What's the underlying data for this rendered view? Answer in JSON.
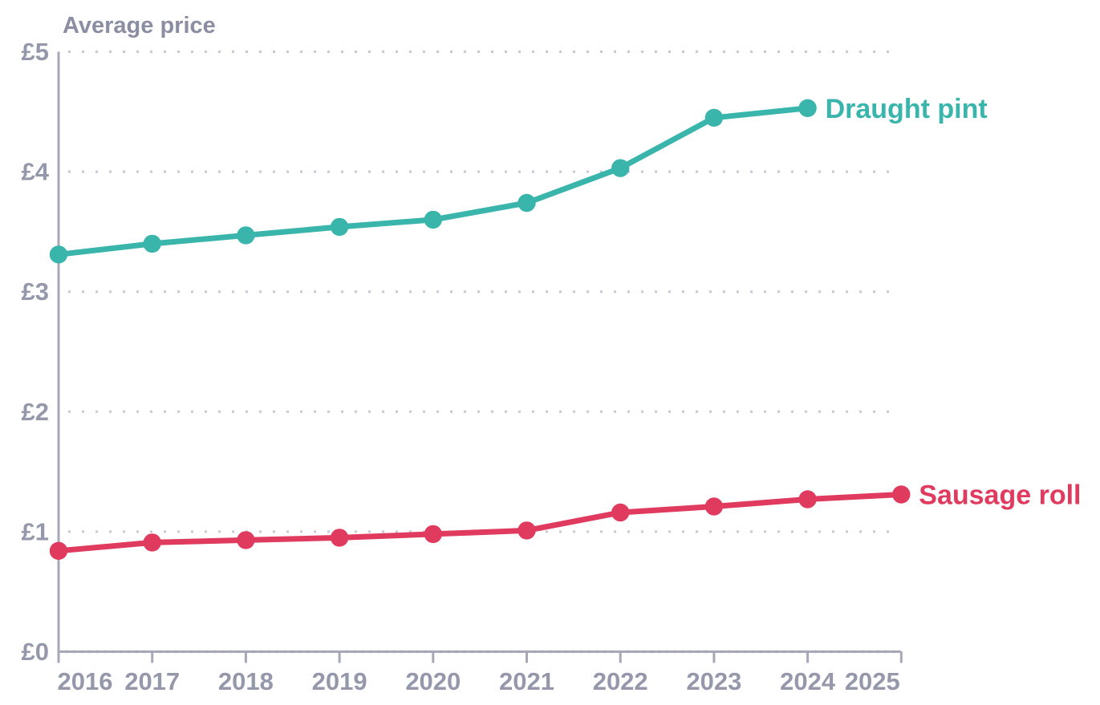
{
  "chart_data": {
    "type": "line",
    "title": "Average price",
    "currency_symbol": "£",
    "xlim": [
      2016,
      2025
    ],
    "ylim": [
      0,
      5
    ],
    "grid": "dotted-horizontal",
    "legend_position": "end-of-line-labels",
    "x_axis": {
      "major_ticks": [
        2016,
        2017,
        2018,
        2019,
        2020,
        2021,
        2022,
        2023,
        2024,
        2025
      ],
      "tick_labels": [
        "2016",
        "2017",
        "2018",
        "2019",
        "2020",
        "2021",
        "2022",
        "2023",
        "2024",
        "2025"
      ],
      "minor_tick_interval": "monthly"
    },
    "y_axis": {
      "tick_values": [
        0,
        1,
        2,
        3,
        4,
        5
      ],
      "tick_labels": [
        "£0",
        "£1",
        "£2",
        "£3",
        "£4",
        "£5"
      ]
    },
    "series": [
      {
        "name": "Draught pint",
        "color": "#3ab5ac",
        "x": [
          2016,
          2017,
          2018,
          2019,
          2020,
          2021,
          2022,
          2023,
          2024
        ],
        "values": [
          3.31,
          3.4,
          3.47,
          3.54,
          3.6,
          3.74,
          4.03,
          4.45,
          4.53
        ]
      },
      {
        "name": "Sausage roll",
        "color": "#e03a5f",
        "x": [
          2016,
          2017,
          2018,
          2019,
          2020,
          2021,
          2022,
          2023,
          2024,
          2025
        ],
        "values": [
          0.84,
          0.91,
          0.93,
          0.95,
          0.98,
          1.01,
          1.16,
          1.21,
          1.27,
          1.31
        ]
      }
    ]
  },
  "colors": {
    "background": "#ffffff",
    "axis": "#a6a7b7",
    "tick_label": "#9597ab",
    "title": "#8b8ea3",
    "gridline": "#c8c9d4",
    "draught_pint": "#3ab5ac",
    "sausage_roll": "#e03a5f"
  }
}
